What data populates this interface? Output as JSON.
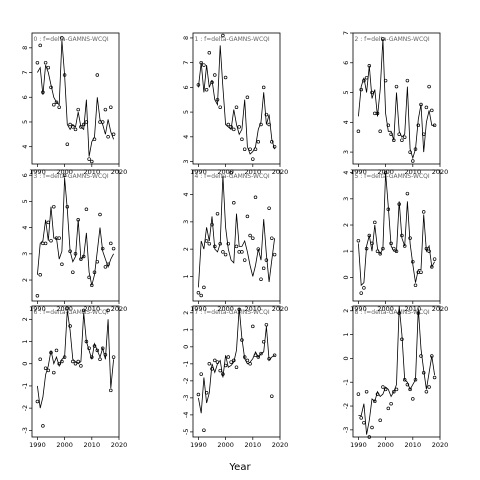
{
  "chart_data": {
    "type": "scatter",
    "xlabel": "Year",
    "xlim": [
      1988,
      2020
    ],
    "xticks": [
      1990,
      2000,
      2010,
      2020
    ],
    "panels": [
      {
        "title": "0 : f=delta-GAMNS-WCQI",
        "ylim": [
          3.3,
          8.6
        ],
        "yticks": [
          4,
          5,
          6,
          7,
          8
        ],
        "x": [
          1990,
          1991,
          1992,
          1993,
          1994,
          1995,
          1996,
          1997,
          1998,
          1999,
          2000,
          2001,
          2002,
          2003,
          2004,
          2005,
          2006,
          2007,
          2008,
          2009,
          2010,
          2011,
          2012,
          2013,
          2014,
          2015,
          2016,
          2017,
          2018
        ],
        "fit": [
          7.0,
          7.2,
          6.1,
          7.3,
          7.0,
          6.5,
          6.0,
          5.8,
          5.7,
          8.3,
          6.9,
          4.9,
          4.7,
          4.9,
          4.8,
          5.4,
          4.8,
          4.7,
          5.9,
          3.6,
          4.2,
          4.4,
          6.0,
          5.1,
          4.9,
          4.5,
          5.1,
          4.6,
          4.3
        ],
        "obs": [
          7.4,
          8.1,
          6.2,
          7.4,
          7.2,
          6.4,
          5.7,
          5.8,
          5.6,
          8.4,
          6.9,
          4.1,
          4.9,
          4.8,
          4.7,
          5.5,
          4.8,
          4.9,
          5.0,
          3.5,
          3.4,
          4.3,
          6.9,
          5.0,
          5.0,
          5.5,
          4.4,
          5.6,
          4.5
        ]
      },
      {
        "title": "3 : f=delta-GAMNS-WCQI",
        "ylim": [
          1.2,
          6.2
        ],
        "yticks": [
          2,
          3,
          4,
          5,
          6
        ],
        "x": [
          1990,
          1991,
          1992,
          1993,
          1994,
          1995,
          1996,
          1997,
          1998,
          1999,
          2000,
          2001,
          2002,
          2003,
          2004,
          2005,
          2006,
          2007,
          2008,
          2009,
          2010,
          2011,
          2012,
          2013,
          2014,
          2015,
          2016,
          2017,
          2018
        ],
        "fit": [
          2.2,
          3.4,
          3.5,
          4.3,
          3.5,
          4.8,
          3.6,
          3.6,
          2.8,
          3.1,
          5.9,
          4.7,
          3.1,
          2.7,
          2.9,
          4.3,
          2.8,
          2.9,
          3.8,
          2.3,
          1.8,
          2.2,
          3.1,
          4.0,
          3.1,
          2.8,
          2.5,
          2.8,
          3.0
        ],
        "obs": [
          1.4,
          2.2,
          3.4,
          3.4,
          4.2,
          3.5,
          4.8,
          3.6,
          3.6,
          2.6,
          6.0,
          4.8,
          3.1,
          2.3,
          3.0,
          4.3,
          2.8,
          2.9,
          4.7,
          2.1,
          1.8,
          2.3,
          2.7,
          4.5,
          3.2,
          2.5,
          2.6,
          3.4,
          3.2
        ]
      },
      {
        "title": "6 : f=delta-GAMNS-WCQI",
        "ylim": [
          -3.3,
          2.6
        ],
        "yticks": [
          -3,
          -2,
          -1,
          0,
          1,
          2
        ],
        "x": [
          1990,
          1991,
          1992,
          1993,
          1994,
          1995,
          1996,
          1997,
          1998,
          1999,
          2000,
          2001,
          2002,
          2003,
          2004,
          2005,
          2006,
          2007,
          2008,
          2009,
          2010,
          2011,
          2012,
          2013,
          2014,
          2015,
          2016,
          2017,
          2018
        ],
        "fit": [
          -1.0,
          -2.0,
          -1.5,
          -0.5,
          -0.1,
          0.6,
          0.0,
          0.3,
          -0.1,
          0.2,
          0.3,
          2.4,
          1.5,
          0.2,
          0.1,
          0.0,
          0.1,
          2.3,
          1.0,
          0.6,
          0.2,
          0.9,
          0.6,
          0.3,
          0.7,
          0.2,
          2.0,
          -1.1,
          0.2
        ],
        "obs": [
          -1.7,
          0.2,
          -2.8,
          -0.2,
          -0.3,
          0.5,
          -0.4,
          0.6,
          0.0,
          0.1,
          0.3,
          2.5,
          1.7,
          0.1,
          0.0,
          0.1,
          -0.1,
          2.4,
          1.0,
          0.7,
          0.3,
          0.8,
          0.6,
          0.2,
          0.7,
          0.4,
          2.4,
          -1.2,
          0.3
        ]
      },
      {
        "title": "1 : f=delta-GAMNS-WCQI",
        "ylim": [
          2.9,
          8.2
        ],
        "yticks": [
          3,
          4,
          5,
          6,
          7,
          8
        ],
        "x": [
          1990,
          1991,
          1992,
          1993,
          1994,
          1995,
          1996,
          1997,
          1998,
          1999,
          2000,
          2001,
          2002,
          2003,
          2004,
          2005,
          2006,
          2007,
          2008,
          2009,
          2010,
          2011,
          2012,
          2013,
          2014,
          2015,
          2016,
          2017,
          2018
        ],
        "fit": [
          6.0,
          7.0,
          5.8,
          6.9,
          6.0,
          6.3,
          5.5,
          5.3,
          7.7,
          6.0,
          4.5,
          4.4,
          4.3,
          5.1,
          4.5,
          4.1,
          4.3,
          5.5,
          3.6,
          3.3,
          3.4,
          3.6,
          4.3,
          4.6,
          5.8,
          4.5,
          4.9,
          3.9,
          3.5
        ],
        "obs": [
          6.1,
          7.0,
          6.9,
          5.9,
          7.4,
          6.2,
          6.5,
          5.5,
          5.2,
          8.1,
          6.4,
          4.5,
          4.4,
          4.3,
          5.2,
          4.4,
          3.9,
          3.5,
          5.6,
          3.5,
          3.1,
          3.5,
          3.8,
          4.5,
          6.0,
          4.9,
          4.5,
          3.8,
          3.6
        ]
      },
      {
        "title": "4 : f=delta-GAMNS-WCQI",
        "ylim": [
          0.1,
          4.9
        ],
        "yticks": [
          1,
          2,
          3,
          4
        ],
        "x": [
          1990,
          1991,
          1992,
          1993,
          1994,
          1995,
          1996,
          1997,
          1998,
          1999,
          2000,
          2001,
          2002,
          2003,
          2004,
          2005,
          2006,
          2007,
          2008,
          2009,
          2010,
          2011,
          2012,
          2013,
          2014,
          2015,
          2016,
          2017,
          2018
        ],
        "fit": [
          0.6,
          2.3,
          2.0,
          2.8,
          2.3,
          3.2,
          2.0,
          1.9,
          2.2,
          4.7,
          2.8,
          2.0,
          1.6,
          1.5,
          3.3,
          2.1,
          2.1,
          2.3,
          1.9,
          1.4,
          1.0,
          1.4,
          2.0,
          1.6,
          3.1,
          1.8,
          0.8,
          1.6,
          2.4
        ],
        "obs": [
          0.4,
          0.3,
          0.6,
          2.3,
          2.2,
          2.9,
          2.1,
          3.3,
          2.2,
          1.9,
          1.8,
          2.2,
          4.8,
          3.7,
          2.1,
          1.9,
          1.9,
          1.6,
          3.2,
          2.5,
          2.4,
          3.9,
          2.0,
          0.9,
          1.3,
          1.6,
          3.5,
          2.4,
          1.8
        ]
      },
      {
        "title": "7 : f=delta-GAMNS-WCQI",
        "ylim": [
          -5.3,
          2.4
        ],
        "yticks": [
          -5,
          -4,
          -3,
          -2,
          -1,
          0,
          1,
          2
        ],
        "x": [
          1990,
          1991,
          1992,
          1993,
          1994,
          1995,
          1996,
          1997,
          1998,
          1999,
          2000,
          2001,
          2002,
          2003,
          2004,
          2005,
          2006,
          2007,
          2008,
          2009,
          2010,
          2011,
          2012,
          2013,
          2014,
          2015,
          2016,
          2017,
          2018
        ],
        "fit": [
          -3.0,
          -3.9,
          -1.8,
          -3.3,
          -2.7,
          -1.0,
          -1.5,
          -1.0,
          -0.8,
          -1.8,
          -0.5,
          -1.2,
          -1.1,
          -0.9,
          -0.2,
          2.3,
          0.5,
          -0.7,
          -1.0,
          -0.9,
          -0.7,
          -0.3,
          -0.6,
          -0.4,
          -0.3,
          1.2,
          -0.8,
          -0.6,
          -0.5
        ],
        "obs": [
          -2.8,
          -1.6,
          -4.9,
          -2.7,
          -1.0,
          -1.3,
          -0.8,
          -0.9,
          -1.4,
          -1.6,
          -1.1,
          -0.6,
          -0.9,
          -0.8,
          -1.2,
          2.2,
          0.4,
          -0.6,
          -0.8,
          -1.0,
          1.2,
          -0.5,
          -0.6,
          -0.4,
          0.3,
          1.3,
          -0.7,
          -2.9,
          -0.5
        ]
      },
      {
        "title": "2 : f=delta-GAMNS-WCQI",
        "ylim": [
          2.6,
          7.0
        ],
        "yticks": [
          3,
          4,
          5,
          6,
          7
        ],
        "x": [
          1990,
          1991,
          1992,
          1993,
          1994,
          1995,
          1996,
          1997,
          1998,
          1999,
          2000,
          2001,
          2002,
          2003,
          2004,
          2005,
          2006,
          2007,
          2008,
          2009,
          2010,
          2011,
          2012,
          2013,
          2014,
          2015,
          2016,
          2017,
          2018
        ],
        "fit": [
          4.2,
          5.2,
          5.5,
          5.0,
          5.9,
          4.8,
          5.1,
          4.2,
          5.1,
          6.8,
          4.3,
          3.7,
          3.7,
          3.4,
          5.0,
          3.7,
          3.5,
          3.6,
          5.2,
          3.1,
          2.8,
          3.1,
          4.1,
          4.6,
          3.0,
          4.0,
          4.4,
          3.9,
          3.9
        ],
        "obs": [
          3.7,
          5.1,
          5.4,
          5.5,
          5.9,
          5.0,
          4.3,
          4.3,
          3.7,
          6.8,
          5.4,
          3.9,
          3.6,
          3.4,
          5.2,
          3.6,
          3.4,
          3.5,
          5.4,
          3.0,
          2.7,
          3.1,
          3.9,
          4.6,
          3.6,
          4.5,
          5.2,
          4.4,
          3.9
        ]
      },
      {
        "title": "5 : f=delta-GAMNS-WCQI",
        "ylim": [
          -0.9,
          4.1
        ],
        "yticks": [
          0,
          1,
          2,
          3,
          4
        ],
        "x": [
          1990,
          1991,
          1992,
          1993,
          1994,
          1995,
          1996,
          1997,
          1998,
          1999,
          2000,
          2001,
          2002,
          2003,
          2004,
          2005,
          2006,
          2007,
          2008,
          2009,
          2010,
          2011,
          2012,
          2013,
          2014,
          2015,
          2016,
          2017,
          2018
        ],
        "fit": [
          1.3,
          -0.3,
          -0.2,
          1.2,
          1.6,
          1.0,
          2.0,
          1.1,
          0.9,
          1.1,
          4.0,
          2.7,
          1.2,
          1.0,
          1.0,
          2.9,
          1.5,
          1.2,
          2.9,
          1.3,
          0.5,
          -0.2,
          0.3,
          0.3,
          2.4,
          1.0,
          1.2,
          0.4,
          0.6
        ],
        "obs": [
          1.4,
          -0.6,
          -0.4,
          1.1,
          1.6,
          1.3,
          2.1,
          1.0,
          0.9,
          1.1,
          4.0,
          2.6,
          1.3,
          1.1,
          1.0,
          2.8,
          1.6,
          1.2,
          3.2,
          1.5,
          0.6,
          -0.3,
          0.2,
          0.2,
          2.5,
          1.1,
          1.0,
          0.4,
          0.7
        ]
      },
      {
        "title": "8 : f=delta-GAMNS-WCQI",
        "ylim": [
          -3.3,
          2.2
        ],
        "yticks": [
          -3,
          -2,
          -1,
          0,
          1,
          2
        ],
        "x": [
          1990,
          1991,
          1992,
          1993,
          1994,
          1995,
          1996,
          1997,
          1998,
          1999,
          2000,
          2001,
          2002,
          2003,
          2004,
          2005,
          2006,
          2007,
          2008,
          2009,
          2010,
          2011,
          2012,
          2013,
          2014,
          2015,
          2016,
          2017,
          2018
        ],
        "fit": [
          -2.4,
          -2.4,
          -1.9,
          -3.2,
          -2.6,
          -1.7,
          -1.8,
          -1.4,
          -1.6,
          -1.5,
          -1.2,
          -1.3,
          -1.6,
          -1.4,
          -1.1,
          2.2,
          1.0,
          -0.9,
          -1.0,
          -1.3,
          -1.1,
          -0.9,
          2.1,
          0.4,
          -0.5,
          -1.3,
          -0.6,
          0.1,
          -0.7
        ],
        "obs": [
          -1.5,
          -2.5,
          -2.7,
          -1.4,
          -3.3,
          -2.9,
          -1.8,
          -1.5,
          -2.6,
          -1.2,
          -1.3,
          -2.1,
          -1.9,
          -1.4,
          -1.3,
          1.9,
          0.8,
          -0.9,
          -1.1,
          -1.3,
          -1.7,
          -0.9,
          1.9,
          0.1,
          -0.6,
          -1.4,
          -1.2,
          0.1,
          -0.8
        ]
      }
    ]
  }
}
